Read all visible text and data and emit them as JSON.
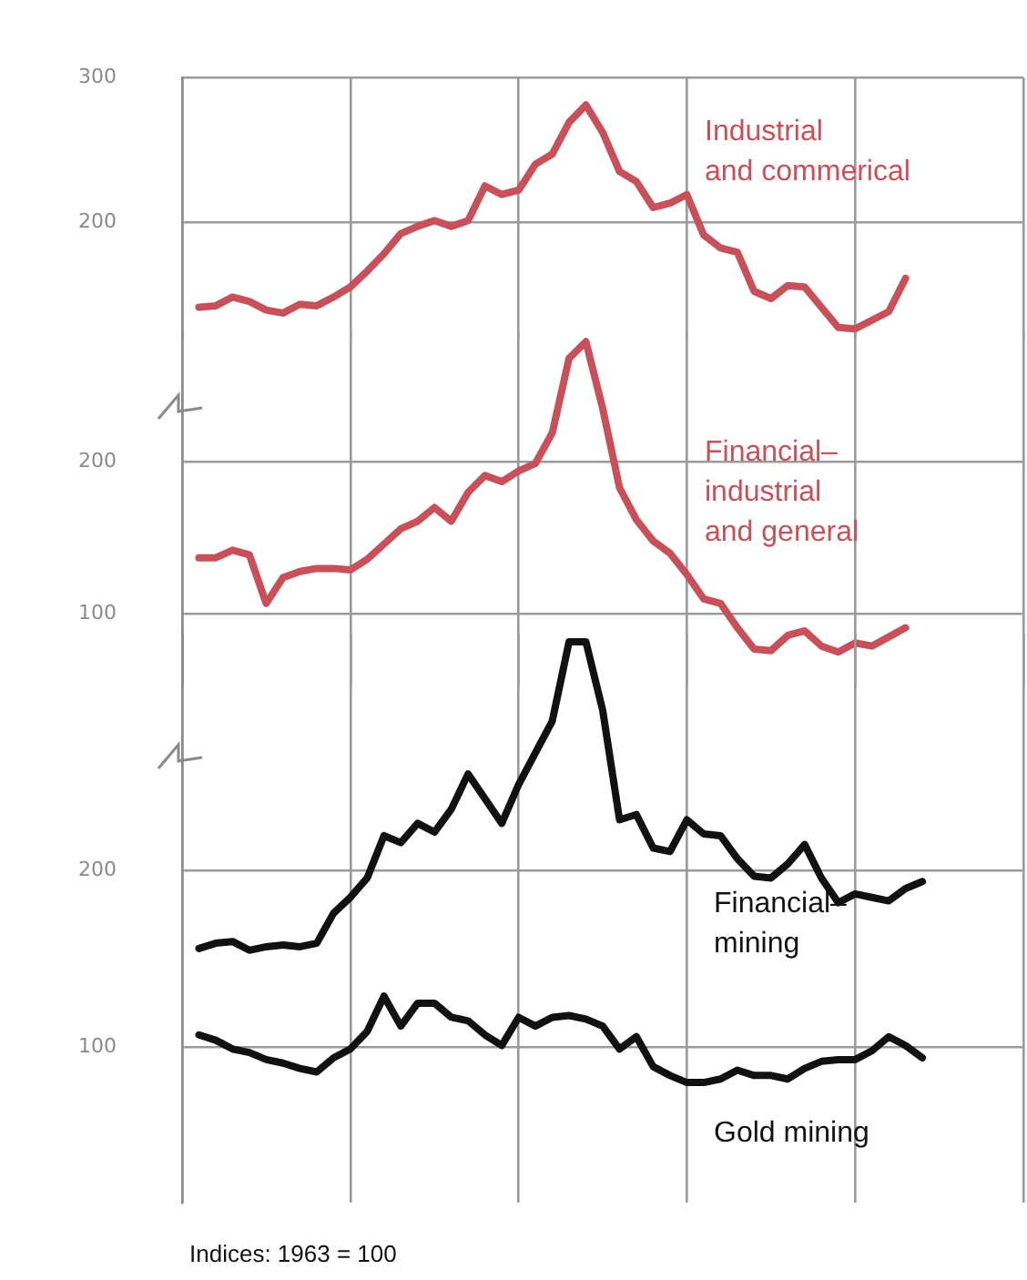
{
  "chart_data": [
    {
      "type": "line",
      "categories": [
        null,
        null,
        null,
        null,
        null,
        null,
        null,
        null,
        null,
        null,
        null,
        null,
        null,
        null,
        null,
        null,
        null,
        null,
        null,
        null,
        null,
        null,
        null,
        null,
        null,
        null,
        null,
        null,
        null,
        null,
        null,
        null,
        null,
        null,
        null,
        null,
        null,
        null,
        null,
        null,
        null,
        null,
        null,
        null,
        null,
        null,
        null,
        null,
        null,
        null,
        null
      ],
      "series": [
        {
          "name": "Industrial\nand commerical",
          "color": "#c8505a",
          "values": [
            null,
            141,
            142,
            148,
            145,
            139,
            137,
            143,
            142,
            148,
            155,
            166,
            178,
            192,
            197,
            201,
            197,
            201,
            225,
            219,
            222,
            240,
            247,
            269,
            281,
            262,
            235,
            228,
            210,
            213,
            219,
            191,
            182,
            179,
            152,
            147,
            156,
            155,
            141,
            127,
            126,
            132,
            138,
            161,
            null,
            null,
            null,
            null,
            null,
            null,
            null
          ]
        }
      ],
      "ylim": [
        120,
        300
      ],
      "yticks": [
        200,
        300
      ],
      "grid": true,
      "tick_labels": "y"
    },
    {
      "type": "line",
      "categories": [
        null,
        null,
        null,
        null,
        null,
        null,
        null,
        null,
        null,
        null,
        null,
        null,
        null,
        null,
        null,
        null,
        null,
        null,
        null,
        null,
        null,
        null,
        null,
        null,
        null,
        null,
        null,
        null,
        null,
        null,
        null,
        null,
        null,
        null,
        null,
        null,
        null,
        null,
        null,
        null,
        null,
        null,
        null,
        null,
        null,
        null,
        null,
        null,
        null,
        null,
        null
      ],
      "series": [
        {
          "name": "Financial–\nindustrial\nand general",
          "color": "#c8505a",
          "values": [
            null,
            137,
            137,
            142,
            139,
            107,
            124,
            128,
            130,
            130,
            129,
            136,
            146,
            156,
            161,
            170,
            161,
            180,
            191,
            187,
            194,
            199,
            219,
            268,
            279,
            235,
            183,
            162,
            148,
            140,
            126,
            110,
            107,
            91,
            77,
            76,
            86,
            89,
            79,
            75,
            81,
            79,
            85,
            91,
            null,
            null,
            null,
            null,
            null,
            null,
            null
          ]
        }
      ],
      "ylim": [
        52,
        285
      ],
      "yticks": [
        100,
        200
      ],
      "grid": true,
      "tick_labels": "y"
    },
    {
      "type": "line",
      "categories": [
        null,
        null,
        null,
        null,
        null,
        null,
        null,
        null,
        null,
        null,
        null,
        null,
        null,
        null,
        null,
        null,
        null,
        null,
        null,
        null,
        null,
        null,
        null,
        null,
        null,
        null,
        null,
        null,
        null,
        null,
        null,
        null,
        null,
        null,
        null,
        null,
        null,
        null,
        null,
        null,
        null,
        null,
        null,
        null,
        null,
        null,
        null,
        null,
        null,
        null,
        null
      ],
      "series": [
        {
          "name": "Financial–\nmining",
          "color": "#111111",
          "values": [
            null,
            156,
            159,
            160,
            155,
            157,
            158,
            157,
            159,
            176,
            185,
            196,
            220,
            216,
            227,
            222,
            235,
            255,
            241,
            227,
            249,
            267,
            285,
            330,
            330,
            291,
            229,
            232,
            213,
            211,
            229,
            221,
            220,
            207,
            197,
            196,
            204,
            215,
            196,
            182,
            187,
            185,
            183,
            190,
            194,
            null,
            null,
            null,
            null,
            null,
            null
          ]
        },
        {
          "name": "Gold mining",
          "color": "#111111",
          "values": [
            null,
            107,
            104,
            99,
            97,
            93,
            91,
            88,
            86,
            94,
            99,
            109,
            129,
            112,
            125,
            125,
            117,
            115,
            107,
            101,
            117,
            112,
            117,
            118,
            116,
            112,
            99,
            106,
            89,
            84,
            80,
            80,
            82,
            87,
            84,
            84,
            82,
            88,
            92,
            93,
            93,
            98,
            106,
            101,
            94,
            null,
            null,
            null,
            null,
            null,
            null
          ]
        }
      ],
      "ylim": [
        12,
        335
      ],
      "yticks": [
        100,
        200
      ],
      "grid": true,
      "tick_labels": "y",
      "annotations": [
        "Indices: 1963 = 100"
      ]
    }
  ]
}
